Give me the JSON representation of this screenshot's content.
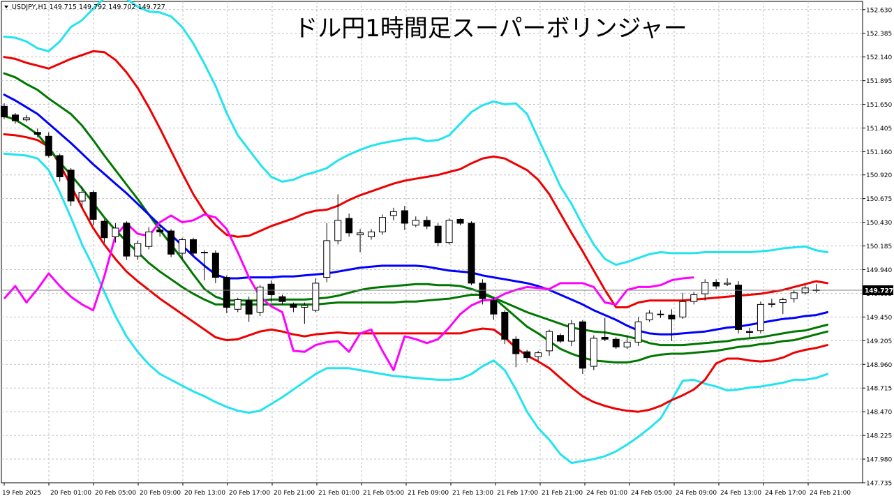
{
  "header": {
    "symbol_info": "USDJPY,H1  149.715 149.792 149.702 149.727",
    "title": "ドル円1時間足スーパーボリンジャー"
  },
  "colors": {
    "background": "#ffffff",
    "grid": "#c0c0c0",
    "axis": "#000000",
    "bull_fill": "#ffffff",
    "bear_fill": "#000000",
    "candle_outline": "#000000",
    "mid_line": "#0000ff",
    "sigma1": "#007700",
    "sigma2": "#ee0000",
    "sigma3": "#22e4f0",
    "lagging_span": "#ff00ff",
    "price_label_bg": "#000000",
    "price_label_text": "#ffffff"
  },
  "chart_data": {
    "type": "candlestick",
    "symbol": "USDJPY",
    "timeframe": "H1",
    "title": "ドル円1時間足スーパーボリンジャー",
    "y_ticks": [
      "152.630",
      "152.385",
      "152.140",
      "151.895",
      "151.650",
      "151.405",
      "151.160",
      "150.920",
      "150.675",
      "150.430",
      "150.185",
      "149.940",
      "149.695",
      "149.450",
      "149.205",
      "148.960",
      "148.715",
      "148.470",
      "148.225",
      "147.980",
      "147.735"
    ],
    "ylim": [
      147.735,
      152.715
    ],
    "x_ticks": [
      "19 Feb 2025",
      "20 Feb 01:00",
      "20 Feb 05:00",
      "20 Feb 09:00",
      "20 Feb 13:00",
      "20 Feb 17:00",
      "20 Feb 21:00",
      "21 Feb 01:00",
      "21 Feb 05:00",
      "21 Feb 09:00",
      "21 Feb 13:00",
      "21 Feb 17:00",
      "21 Feb 21:00",
      "24 Feb 01:00",
      "24 Feb 05:00",
      "24 Feb 09:00",
      "24 Feb 13:00",
      "24 Feb 17:00",
      "24 Feb 21:00"
    ],
    "current_price": 149.727,
    "candles": [
      {
        "o": 151.63,
        "h": 151.66,
        "l": 151.5,
        "c": 151.52
      },
      {
        "o": 151.54,
        "h": 151.56,
        "l": 151.45,
        "c": 151.48
      },
      {
        "o": 151.49,
        "h": 151.54,
        "l": 151.47,
        "c": 151.51
      },
      {
        "o": 151.36,
        "h": 151.4,
        "l": 151.31,
        "c": 151.34
      },
      {
        "o": 151.32,
        "h": 151.36,
        "l": 151.1,
        "c": 151.12
      },
      {
        "o": 151.12,
        "h": 151.14,
        "l": 150.85,
        "c": 150.9
      },
      {
        "o": 150.97,
        "h": 150.99,
        "l": 150.6,
        "c": 150.65
      },
      {
        "o": 150.65,
        "h": 150.8,
        "l": 150.58,
        "c": 150.74
      },
      {
        "o": 150.74,
        "h": 150.76,
        "l": 150.4,
        "c": 150.46
      },
      {
        "o": 150.44,
        "h": 150.46,
        "l": 150.22,
        "c": 150.27
      },
      {
        "o": 150.28,
        "h": 150.42,
        "l": 150.22,
        "c": 150.37
      },
      {
        "o": 150.42,
        "h": 150.44,
        "l": 150.04,
        "c": 150.08
      },
      {
        "o": 150.08,
        "h": 150.24,
        "l": 150.04,
        "c": 150.21
      },
      {
        "o": 150.18,
        "h": 150.38,
        "l": 150.15,
        "c": 150.33
      },
      {
        "o": 150.35,
        "h": 150.4,
        "l": 150.28,
        "c": 150.33
      },
      {
        "o": 150.34,
        "h": 150.36,
        "l": 150.07,
        "c": 150.1
      },
      {
        "o": 150.11,
        "h": 150.27,
        "l": 150.05,
        "c": 150.25
      },
      {
        "o": 150.25,
        "h": 150.27,
        "l": 150.08,
        "c": 150.11
      },
      {
        "o": 150.12,
        "h": 150.14,
        "l": 149.83,
        "c": 150.12
      },
      {
        "o": 150.11,
        "h": 150.14,
        "l": 149.8,
        "c": 149.86
      },
      {
        "o": 149.86,
        "h": 149.88,
        "l": 149.49,
        "c": 149.55
      },
      {
        "o": 149.53,
        "h": 149.65,
        "l": 149.5,
        "c": 149.63
      },
      {
        "o": 149.62,
        "h": 149.66,
        "l": 149.4,
        "c": 149.48
      },
      {
        "o": 149.5,
        "h": 149.78,
        "l": 149.46,
        "c": 149.76
      },
      {
        "o": 149.79,
        "h": 149.83,
        "l": 149.6,
        "c": 149.68
      },
      {
        "o": 149.66,
        "h": 149.68,
        "l": 149.58,
        "c": 149.61
      },
      {
        "o": 149.58,
        "h": 149.6,
        "l": 149.5,
        "c": 149.55
      },
      {
        "o": 149.55,
        "h": 149.6,
        "l": 149.38,
        "c": 149.57
      },
      {
        "o": 149.52,
        "h": 149.85,
        "l": 149.5,
        "c": 149.8
      },
      {
        "o": 149.86,
        "h": 150.42,
        "l": 149.81,
        "c": 150.24
      },
      {
        "o": 150.24,
        "h": 150.72,
        "l": 150.2,
        "c": 150.45
      },
      {
        "o": 150.47,
        "h": 150.52,
        "l": 150.28,
        "c": 150.32
      },
      {
        "o": 150.3,
        "h": 150.36,
        "l": 150.12,
        "c": 150.32
      },
      {
        "o": 150.28,
        "h": 150.36,
        "l": 150.25,
        "c": 150.33
      },
      {
        "o": 150.33,
        "h": 150.51,
        "l": 150.3,
        "c": 150.48
      },
      {
        "o": 150.5,
        "h": 150.58,
        "l": 150.45,
        "c": 150.54
      },
      {
        "o": 150.55,
        "h": 150.6,
        "l": 150.35,
        "c": 150.42
      },
      {
        "o": 150.4,
        "h": 150.49,
        "l": 150.38,
        "c": 150.45
      },
      {
        "o": 150.45,
        "h": 150.49,
        "l": 150.36,
        "c": 150.39
      },
      {
        "o": 150.39,
        "h": 150.42,
        "l": 150.18,
        "c": 150.22
      },
      {
        "o": 150.22,
        "h": 150.47,
        "l": 150.2,
        "c": 150.45
      },
      {
        "o": 150.46,
        "h": 150.47,
        "l": 150.4,
        "c": 150.42
      },
      {
        "o": 150.42,
        "h": 150.44,
        "l": 149.78,
        "c": 149.8
      },
      {
        "o": 149.8,
        "h": 149.84,
        "l": 149.58,
        "c": 149.64
      },
      {
        "o": 149.62,
        "h": 149.65,
        "l": 149.42,
        "c": 149.48
      },
      {
        "o": 149.5,
        "h": 149.52,
        "l": 149.17,
        "c": 149.22
      },
      {
        "o": 149.22,
        "h": 149.25,
        "l": 148.93,
        "c": 149.07
      },
      {
        "o": 149.09,
        "h": 149.11,
        "l": 148.98,
        "c": 149.03
      },
      {
        "o": 149.04,
        "h": 149.1,
        "l": 149.0,
        "c": 149.08
      },
      {
        "o": 149.1,
        "h": 149.32,
        "l": 149.05,
        "c": 149.3
      },
      {
        "o": 149.26,
        "h": 149.28,
        "l": 149.18,
        "c": 149.2
      },
      {
        "o": 149.2,
        "h": 149.42,
        "l": 149.15,
        "c": 149.38
      },
      {
        "o": 149.4,
        "h": 149.42,
        "l": 148.86,
        "c": 148.92
      },
      {
        "o": 148.94,
        "h": 149.26,
        "l": 148.9,
        "c": 149.23
      },
      {
        "o": 149.24,
        "h": 149.44,
        "l": 149.2,
        "c": 149.22
      },
      {
        "o": 149.22,
        "h": 149.24,
        "l": 149.12,
        "c": 149.14
      },
      {
        "o": 149.14,
        "h": 149.25,
        "l": 149.12,
        "c": 149.19
      },
      {
        "o": 149.19,
        "h": 149.45,
        "l": 149.15,
        "c": 149.4
      },
      {
        "o": 149.42,
        "h": 149.52,
        "l": 149.4,
        "c": 149.49
      },
      {
        "o": 149.48,
        "h": 149.52,
        "l": 149.44,
        "c": 149.48
      },
      {
        "o": 149.47,
        "h": 149.53,
        "l": 149.2,
        "c": 149.43
      },
      {
        "o": 149.45,
        "h": 149.7,
        "l": 149.43,
        "c": 149.61
      },
      {
        "o": 149.61,
        "h": 149.71,
        "l": 149.58,
        "c": 149.68
      },
      {
        "o": 149.69,
        "h": 149.84,
        "l": 149.62,
        "c": 149.81
      },
      {
        "o": 149.81,
        "h": 149.84,
        "l": 149.74,
        "c": 149.77
      },
      {
        "o": 149.79,
        "h": 149.85,
        "l": 149.77,
        "c": 149.8
      },
      {
        "o": 149.78,
        "h": 149.82,
        "l": 149.28,
        "c": 149.32
      },
      {
        "o": 149.3,
        "h": 149.34,
        "l": 149.24,
        "c": 149.29
      },
      {
        "o": 149.31,
        "h": 149.61,
        "l": 149.28,
        "c": 149.58
      },
      {
        "o": 149.58,
        "h": 149.64,
        "l": 149.55,
        "c": 149.59
      },
      {
        "o": 149.6,
        "h": 149.65,
        "l": 149.48,
        "c": 149.63
      },
      {
        "o": 149.64,
        "h": 149.73,
        "l": 149.6,
        "c": 149.7
      },
      {
        "o": 149.7,
        "h": 149.78,
        "l": 149.68,
        "c": 149.75
      },
      {
        "o": 149.73,
        "h": 149.79,
        "l": 149.7,
        "c": 149.727
      }
    ],
    "bands": {
      "mid": [
        151.75,
        151.69,
        151.62,
        151.55,
        151.45,
        151.35,
        151.25,
        151.14,
        151.03,
        150.93,
        150.83,
        150.73,
        150.62,
        150.51,
        150.4,
        150.3,
        150.19,
        150.08,
        149.98,
        149.89,
        149.85,
        149.85,
        149.86,
        149.86,
        149.86,
        149.87,
        149.87,
        149.88,
        149.89,
        149.9,
        149.92,
        149.94,
        149.96,
        149.97,
        149.98,
        149.98,
        149.98,
        149.98,
        149.97,
        149.95,
        149.93,
        149.92,
        149.91,
        149.88,
        149.86,
        149.84,
        149.82,
        149.8,
        149.77,
        149.73,
        149.68,
        149.63,
        149.58,
        149.52,
        149.47,
        149.42,
        149.36,
        149.31,
        149.28,
        149.27,
        149.27,
        149.28,
        149.29,
        149.3,
        149.32,
        149.34,
        149.35,
        149.37,
        149.39,
        149.41,
        149.43,
        149.44,
        149.46,
        149.47,
        149.5
      ],
      "p1": [
        151.97,
        151.93,
        151.86,
        151.8,
        151.71,
        151.63,
        151.55,
        151.43,
        151.28,
        151.12,
        150.97,
        150.82,
        150.67,
        150.51,
        150.35,
        150.2,
        150.05,
        149.89,
        149.74,
        149.66,
        149.62,
        149.62,
        149.62,
        149.62,
        149.63,
        149.63,
        149.63,
        149.63,
        149.64,
        149.65,
        149.67,
        149.7,
        149.73,
        149.75,
        149.76,
        149.77,
        149.78,
        149.79,
        149.79,
        149.78,
        149.78,
        149.77,
        149.74,
        149.7,
        149.65,
        149.6,
        149.55,
        149.5,
        149.46,
        149.42,
        149.38,
        149.34,
        149.32,
        149.3,
        149.29,
        149.27,
        149.25,
        149.22,
        149.18,
        149.16,
        149.16,
        149.16,
        149.17,
        149.18,
        149.19,
        149.2,
        149.22,
        149.23,
        149.24,
        149.26,
        149.28,
        149.3,
        149.31,
        149.34,
        149.37
      ],
      "m1": [
        151.53,
        151.49,
        151.42,
        151.34,
        151.2,
        151.05,
        150.92,
        150.78,
        150.63,
        150.48,
        150.35,
        150.23,
        150.12,
        150.01,
        149.92,
        149.84,
        149.76,
        149.69,
        149.63,
        149.58,
        149.58,
        149.58,
        149.58,
        149.58,
        149.58,
        149.58,
        149.58,
        149.58,
        149.58,
        149.59,
        149.6,
        149.6,
        149.6,
        149.6,
        149.6,
        149.6,
        149.61,
        149.61,
        149.62,
        149.63,
        149.64,
        149.66,
        149.68,
        149.68,
        149.65,
        149.55,
        149.45,
        149.35,
        149.28,
        149.2,
        149.12,
        149.07,
        149.03,
        149.0,
        148.99,
        148.98,
        148.98,
        149.0,
        149.04,
        149.06,
        149.07,
        149.07,
        149.08,
        149.09,
        149.1,
        149.12,
        149.14,
        149.15,
        149.17,
        149.18,
        149.2,
        149.21,
        149.24,
        149.27,
        149.3
      ],
      "p2": [
        152.14,
        152.12,
        152.08,
        152.05,
        152.02,
        152.07,
        152.12,
        152.16,
        152.2,
        152.19,
        152.11,
        151.98,
        151.82,
        151.62,
        151.4,
        151.17,
        150.94,
        150.72,
        150.54,
        150.4,
        150.3,
        150.28,
        150.29,
        150.34,
        150.39,
        150.43,
        150.47,
        150.52,
        150.55,
        150.56,
        150.6,
        150.66,
        150.71,
        150.75,
        150.79,
        150.83,
        150.86,
        150.88,
        150.9,
        150.92,
        150.95,
        150.98,
        151.04,
        151.09,
        151.11,
        151.09,
        151.03,
        150.97,
        150.87,
        150.72,
        150.52,
        150.32,
        150.13,
        149.93,
        149.73,
        149.55,
        149.55,
        149.6,
        149.62,
        149.62,
        149.62,
        149.62,
        149.63,
        149.64,
        149.65,
        149.66,
        149.67,
        149.68,
        149.69,
        149.71,
        149.73,
        149.76,
        149.79,
        149.82,
        149.8
      ],
      "m2": [
        151.34,
        151.33,
        151.31,
        151.28,
        151.21,
        151.03,
        150.81,
        150.58,
        150.37,
        150.2,
        150.05,
        149.92,
        149.82,
        149.73,
        149.64,
        149.56,
        149.48,
        149.4,
        149.32,
        149.24,
        149.21,
        149.22,
        149.26,
        149.3,
        149.32,
        149.3,
        149.27,
        149.25,
        149.27,
        149.28,
        149.29,
        149.28,
        149.28,
        149.28,
        149.28,
        149.28,
        149.28,
        149.28,
        149.28,
        149.28,
        149.28,
        149.28,
        149.31,
        149.33,
        149.32,
        149.24,
        149.13,
        149.05,
        148.99,
        148.92,
        148.82,
        148.72,
        148.63,
        148.57,
        148.53,
        148.5,
        148.48,
        148.47,
        148.49,
        148.53,
        148.59,
        148.64,
        148.7,
        148.8,
        148.97,
        149.02,
        149.02,
        149.0,
        148.99,
        149.0,
        149.03,
        149.08,
        149.11,
        149.13,
        149.16
      ],
      "p3": [
        152.35,
        152.34,
        152.3,
        152.23,
        152.2,
        152.3,
        152.45,
        152.52,
        152.64,
        152.75,
        152.78,
        152.74,
        152.66,
        152.61,
        152.6,
        152.56,
        152.45,
        152.28,
        152.07,
        151.84,
        151.56,
        151.33,
        151.18,
        151.03,
        150.9,
        150.85,
        150.87,
        150.92,
        150.95,
        150.99,
        151.07,
        151.13,
        151.18,
        151.22,
        151.25,
        151.27,
        151.29,
        151.3,
        151.27,
        151.28,
        151.33,
        151.45,
        151.57,
        151.64,
        151.68,
        151.65,
        151.66,
        151.55,
        151.3,
        151.05,
        150.8,
        150.62,
        150.4,
        150.2,
        150.05,
        149.99,
        150.02,
        150.06,
        150.1,
        150.12,
        150.11,
        150.11,
        150.11,
        150.12,
        150.12,
        150.12,
        150.12,
        150.12,
        150.13,
        150.14,
        150.16,
        150.17,
        150.18,
        150.14,
        150.12
      ],
      "m3": [
        151.14,
        151.13,
        151.12,
        151.09,
        150.97,
        150.74,
        150.48,
        150.2,
        149.97,
        149.71,
        149.46,
        149.25,
        149.09,
        148.96,
        148.86,
        148.8,
        148.74,
        148.68,
        148.63,
        148.57,
        148.52,
        148.48,
        148.46,
        148.48,
        148.55,
        148.62,
        148.7,
        148.78,
        148.86,
        148.92,
        148.92,
        148.92,
        148.9,
        148.88,
        148.86,
        148.84,
        148.83,
        148.82,
        148.81,
        148.8,
        148.8,
        148.81,
        148.86,
        148.94,
        149.0,
        148.9,
        148.7,
        148.47,
        148.3,
        148.18,
        148.03,
        147.94,
        147.96,
        147.98,
        148.01,
        148.06,
        148.13,
        148.21,
        148.3,
        148.4,
        148.59,
        148.79,
        148.8,
        148.76,
        148.73,
        148.69,
        148.7,
        148.72,
        148.73,
        148.75,
        148.77,
        148.8,
        148.8,
        148.82,
        148.86
      ]
    },
    "lagging_span": [
      149.64,
      149.77,
      149.6,
      149.74,
      149.9,
      149.77,
      149.66,
      149.58,
      149.52,
      149.87,
      150.29,
      150.42,
      150.31,
      150.29,
      150.43,
      150.5,
      150.43,
      150.45,
      150.51,
      150.48,
      150.36,
      150.12,
      149.86,
      149.66,
      149.56,
      149.5,
      149.1,
      149.09,
      149.16,
      149.19,
      149.2,
      149.09,
      149.28,
      149.32,
      149.1,
      148.9,
      149.25,
      149.22,
      149.18,
      149.22,
      149.34,
      149.48,
      149.57,
      149.62,
      149.63,
      149.69,
      149.73,
      149.76,
      149.75,
      149.74,
      149.8,
      149.8,
      149.8,
      149.76,
      149.6,
      149.58,
      149.73,
      149.76,
      149.76,
      149.78,
      149.83,
      149.85,
      149.86
    ],
    "lagging_offset": 0
  }
}
